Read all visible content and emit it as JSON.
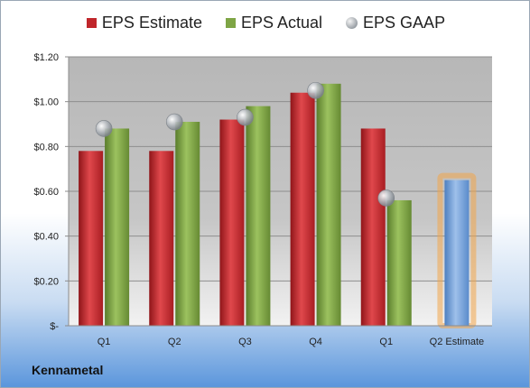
{
  "legend": {
    "estimate": "EPS Estimate",
    "actual": "EPS Actual",
    "gaap": "EPS GAAP"
  },
  "company": "Kennametal",
  "colors": {
    "estimate": "#c0262b",
    "actual": "#7ea545",
    "gaap": "#a5abb1",
    "forecast": "#6f9bd1",
    "forecast_glow": "#f2a64a"
  },
  "chart_data": {
    "type": "bar",
    "categories": [
      "Q1",
      "Q2",
      "Q3",
      "Q4",
      "Q1",
      "Q2 Estimate"
    ],
    "y_tick_labels": [
      "$-",
      "$0.20",
      "$0.40",
      "$0.60",
      "$0.80",
      "$1.00",
      "$1.20"
    ],
    "ylim": [
      0,
      1.2
    ],
    "grid": true,
    "legend_position": "top",
    "series": [
      {
        "name": "EPS Estimate",
        "values": [
          0.78,
          0.78,
          0.92,
          1.04,
          0.88,
          null
        ]
      },
      {
        "name": "EPS Actual",
        "values": [
          0.88,
          0.91,
          0.98,
          1.08,
          0.56,
          null
        ]
      },
      {
        "name": "EPS GAAP",
        "values": [
          0.88,
          0.91,
          0.93,
          1.05,
          0.57,
          null
        ]
      }
    ],
    "forecast": {
      "category": "Q2 Estimate",
      "value": 0.65
    }
  }
}
